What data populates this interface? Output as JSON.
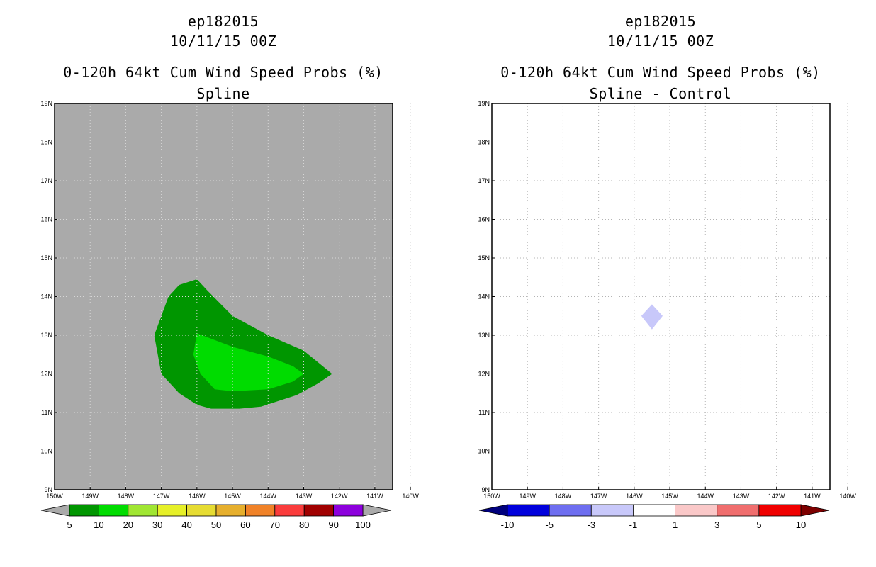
{
  "chart_data": [
    {
      "type": "heatmap",
      "storm_id": "ep182015",
      "date": "10/11/15 00Z",
      "title": "0-120h 64kt Cum Wind Speed Probs (%)",
      "subtitle": "Spline",
      "x_ticks": [
        "150W",
        "149W",
        "148W",
        "147W",
        "146W",
        "145W",
        "144W",
        "143W",
        "142W",
        "141W",
        "140W"
      ],
      "y_ticks": [
        "9N",
        "10N",
        "11N",
        "12N",
        "13N",
        "14N",
        "15N",
        "16N",
        "17N",
        "18N",
        "19N"
      ],
      "xlim": [
        -150,
        -140.5
      ],
      "ylim": [
        9,
        19
      ],
      "background": "#aaaaaa",
      "contours": [
        {
          "level": "5-10",
          "color": "#009600",
          "points": [
            [
              -146.8,
              14.0
            ],
            [
              -146.5,
              14.3
            ],
            [
              -146.0,
              14.45
            ],
            [
              -145.7,
              14.15
            ],
            [
              -145.0,
              13.5
            ],
            [
              -144.0,
              13.0
            ],
            [
              -143.0,
              12.6
            ],
            [
              -142.6,
              12.3
            ],
            [
              -142.2,
              12.0
            ],
            [
              -142.6,
              11.75
            ],
            [
              -143.2,
              11.45
            ],
            [
              -144.2,
              11.15
            ],
            [
              -144.8,
              11.1
            ],
            [
              -145.6,
              11.1
            ],
            [
              -146.0,
              11.2
            ],
            [
              -146.5,
              11.5
            ],
            [
              -147.0,
              12.0
            ],
            [
              -147.2,
              13.0
            ]
          ]
        },
        {
          "level": "10-20",
          "color": "#00dc00",
          "points": [
            [
              -146.0,
              13.05
            ],
            [
              -145.0,
              12.7
            ],
            [
              -144.0,
              12.45
            ],
            [
              -143.3,
              12.2
            ],
            [
              -143.0,
              12.0
            ],
            [
              -143.3,
              11.8
            ],
            [
              -144.0,
              11.6
            ],
            [
              -145.0,
              11.55
            ],
            [
              -145.5,
              11.6
            ],
            [
              -145.9,
              12.0
            ],
            [
              -146.1,
              12.5
            ]
          ]
        }
      ],
      "colorbar": {
        "labels": [
          "5",
          "10",
          "20",
          "30",
          "40",
          "50",
          "60",
          "70",
          "80",
          "90",
          "100"
        ],
        "colors": [
          "#009600",
          "#00dc00",
          "#a0e632",
          "#e6f028",
          "#e6dc32",
          "#e6af2d",
          "#f08228",
          "#fa3c3c",
          "#a00000",
          "#8c00dc"
        ],
        "end_low": "#aaaaaa",
        "end_high": "#aaaaaa"
      }
    },
    {
      "type": "heatmap",
      "storm_id": "ep182015",
      "date": "10/11/15 00Z",
      "title": "0-120h 64kt Cum Wind Speed Probs (%)",
      "subtitle": "Spline - Control",
      "x_ticks": [
        "150W",
        "149W",
        "148W",
        "147W",
        "146W",
        "145W",
        "144W",
        "143W",
        "142W",
        "141W",
        "140W"
      ],
      "y_ticks": [
        "9N",
        "10N",
        "11N",
        "12N",
        "13N",
        "14N",
        "15N",
        "16N",
        "17N",
        "18N",
        "19N"
      ],
      "xlim": [
        -150,
        -140.5
      ],
      "ylim": [
        9,
        19
      ],
      "background": "#ffffff",
      "grid": "dotted",
      "contours": [
        {
          "level": "-3 to -1",
          "color": "#c8c8fa",
          "points": [
            [
              -145.5,
              13.8
            ],
            [
              -145.2,
              13.5
            ],
            [
              -145.5,
              13.15
            ],
            [
              -145.8,
              13.5
            ]
          ]
        }
      ],
      "colorbar": {
        "labels": [
          "-10",
          "-5",
          "-3",
          "-1",
          "1",
          "3",
          "5",
          "10"
        ],
        "colors": [
          "#0000dc",
          "#6e6ef0",
          "#c8c8fa",
          "#ffffff",
          "#fac8c8",
          "#f06e6e",
          "#f00000"
        ],
        "end_low": "#00007d",
        "end_high": "#7d0000"
      }
    }
  ]
}
